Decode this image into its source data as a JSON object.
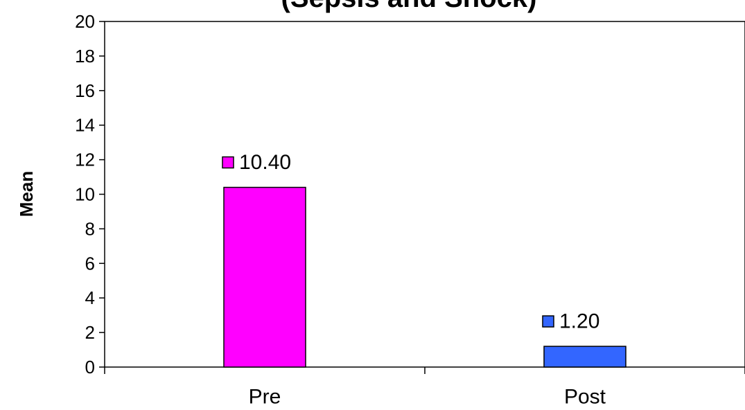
{
  "chart_data": {
    "type": "bar",
    "title": "(Sepsis and Shock)",
    "ylabel": "Mean",
    "xlabel": "",
    "ylim": [
      0,
      20
    ],
    "yticks": [
      0,
      2,
      4,
      6,
      8,
      10,
      12,
      14,
      16,
      18,
      20
    ],
    "categories": [
      "Pre",
      "Post"
    ],
    "values": [
      10.4,
      1.2
    ],
    "data_labels": [
      "10.40",
      "1.20"
    ],
    "colors": [
      "#ff00ff",
      "#3366ff"
    ],
    "grid": false,
    "legend": "none"
  }
}
